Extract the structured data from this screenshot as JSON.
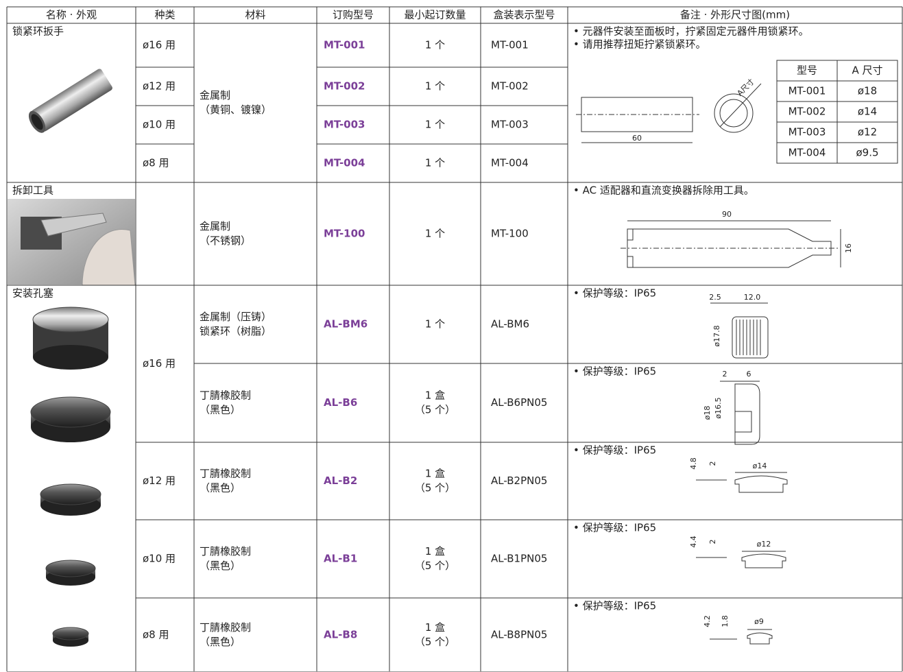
{
  "table": {
    "header": [
      "名称 · 外观",
      "种类",
      "材料",
      "订购型号",
      "最小起订数量",
      "盒装表示型号",
      "备注 · 外形尺寸图(mm)"
    ],
    "sections": [
      {
        "name": "锁紧环扳手",
        "material": [
          "金属制",
          "（黄铜、镀镍）"
        ],
        "rows": [
          {
            "type": "ø16 用",
            "model": "MT-001",
            "qty": [
              "1 个"
            ],
            "box": "MT-001"
          },
          {
            "type": "ø12 用",
            "model": "MT-002",
            "qty": [
              "1 个"
            ],
            "box": "MT-002"
          },
          {
            "type": "ø10 用",
            "model": "MT-003",
            "qty": [
              "1 个"
            ],
            "box": "MT-003"
          },
          {
            "type": "ø8 用",
            "model": "MT-004",
            "qty": [
              "1 个"
            ],
            "box": "MT-004"
          }
        ],
        "notes": [
          "• 元器件安装至面板时，拧紧固定元器件用锁紧环。",
          "• 请用推荐扭矩拧紧锁紧环。"
        ],
        "dims": [
          "60",
          "A尺寸"
        ],
        "size_table": {
          "header": [
            "型号",
            "A 尺寸"
          ],
          "rows": [
            [
              "MT-001",
              "ø18"
            ],
            [
              "MT-002",
              "ø14"
            ],
            [
              "MT-003",
              "ø12"
            ],
            [
              "MT-004",
              "ø9.5"
            ]
          ]
        }
      },
      {
        "name": "拆卸工具",
        "material": [
          "金属制",
          "（不锈钢）"
        ],
        "rows": [
          {
            "model": "MT-100",
            "qty": [
              "1 个"
            ],
            "box": "MT-100"
          }
        ],
        "notes": [
          "• AC 适配器和直流变换器拆除用工具。"
        ],
        "dims": [
          "90",
          "16"
        ]
      },
      {
        "name": "安装孔塞",
        "rows": [
          {
            "type": "ø16 用",
            "material": [
              "金属制（压铸）",
              "锁紧环（树脂）"
            ],
            "model": "AL-BM6",
            "qty": [
              "1 个"
            ],
            "box": "AL-BM6",
            "notes": [
              "• 保护等级：IP65"
            ],
            "dims": [
              "2.5",
              "12.0",
              "ø17.8"
            ]
          },
          {
            "material": [
              "丁腈橡胶制",
              "（黑色）"
            ],
            "model": "AL-B6",
            "qty": [
              "1 盒",
              "（5 个）"
            ],
            "box": "AL-B6PN05",
            "notes": [
              "• 保护等级：IP65"
            ],
            "dims": [
              "2",
              "6",
              "ø18",
              "ø16.5"
            ]
          },
          {
            "type": "ø12 用",
            "material": [
              "丁腈橡胶制",
              "（黑色）"
            ],
            "model": "AL-B2",
            "qty": [
              "1 盒",
              "（5 个）"
            ],
            "box": "AL-B2PN05",
            "notes": [
              "• 保护等级：IP65"
            ],
            "dims": [
              "4.8",
              "2",
              "ø14"
            ]
          },
          {
            "type": "ø10 用",
            "material": [
              "丁腈橡胶制",
              "（黑色）"
            ],
            "model": "AL-B1",
            "qty": [
              "1 盒",
              "（5 个）"
            ],
            "box": "AL-B1PN05",
            "notes": [
              "• 保护等级：IP65"
            ],
            "dims": [
              "4.4",
              "2",
              "ø12"
            ]
          },
          {
            "type": "ø8 用",
            "material": [
              "丁腈橡胶制",
              "（黑色）"
            ],
            "model": "AL-B8",
            "qty": [
              "1 盒",
              "（5 个）"
            ],
            "box": "AL-B8PN05",
            "notes": [
              "• 保护等级：IP65"
            ],
            "dims": [
              "4.2",
              "1.8",
              "ø9"
            ]
          }
        ]
      }
    ]
  }
}
